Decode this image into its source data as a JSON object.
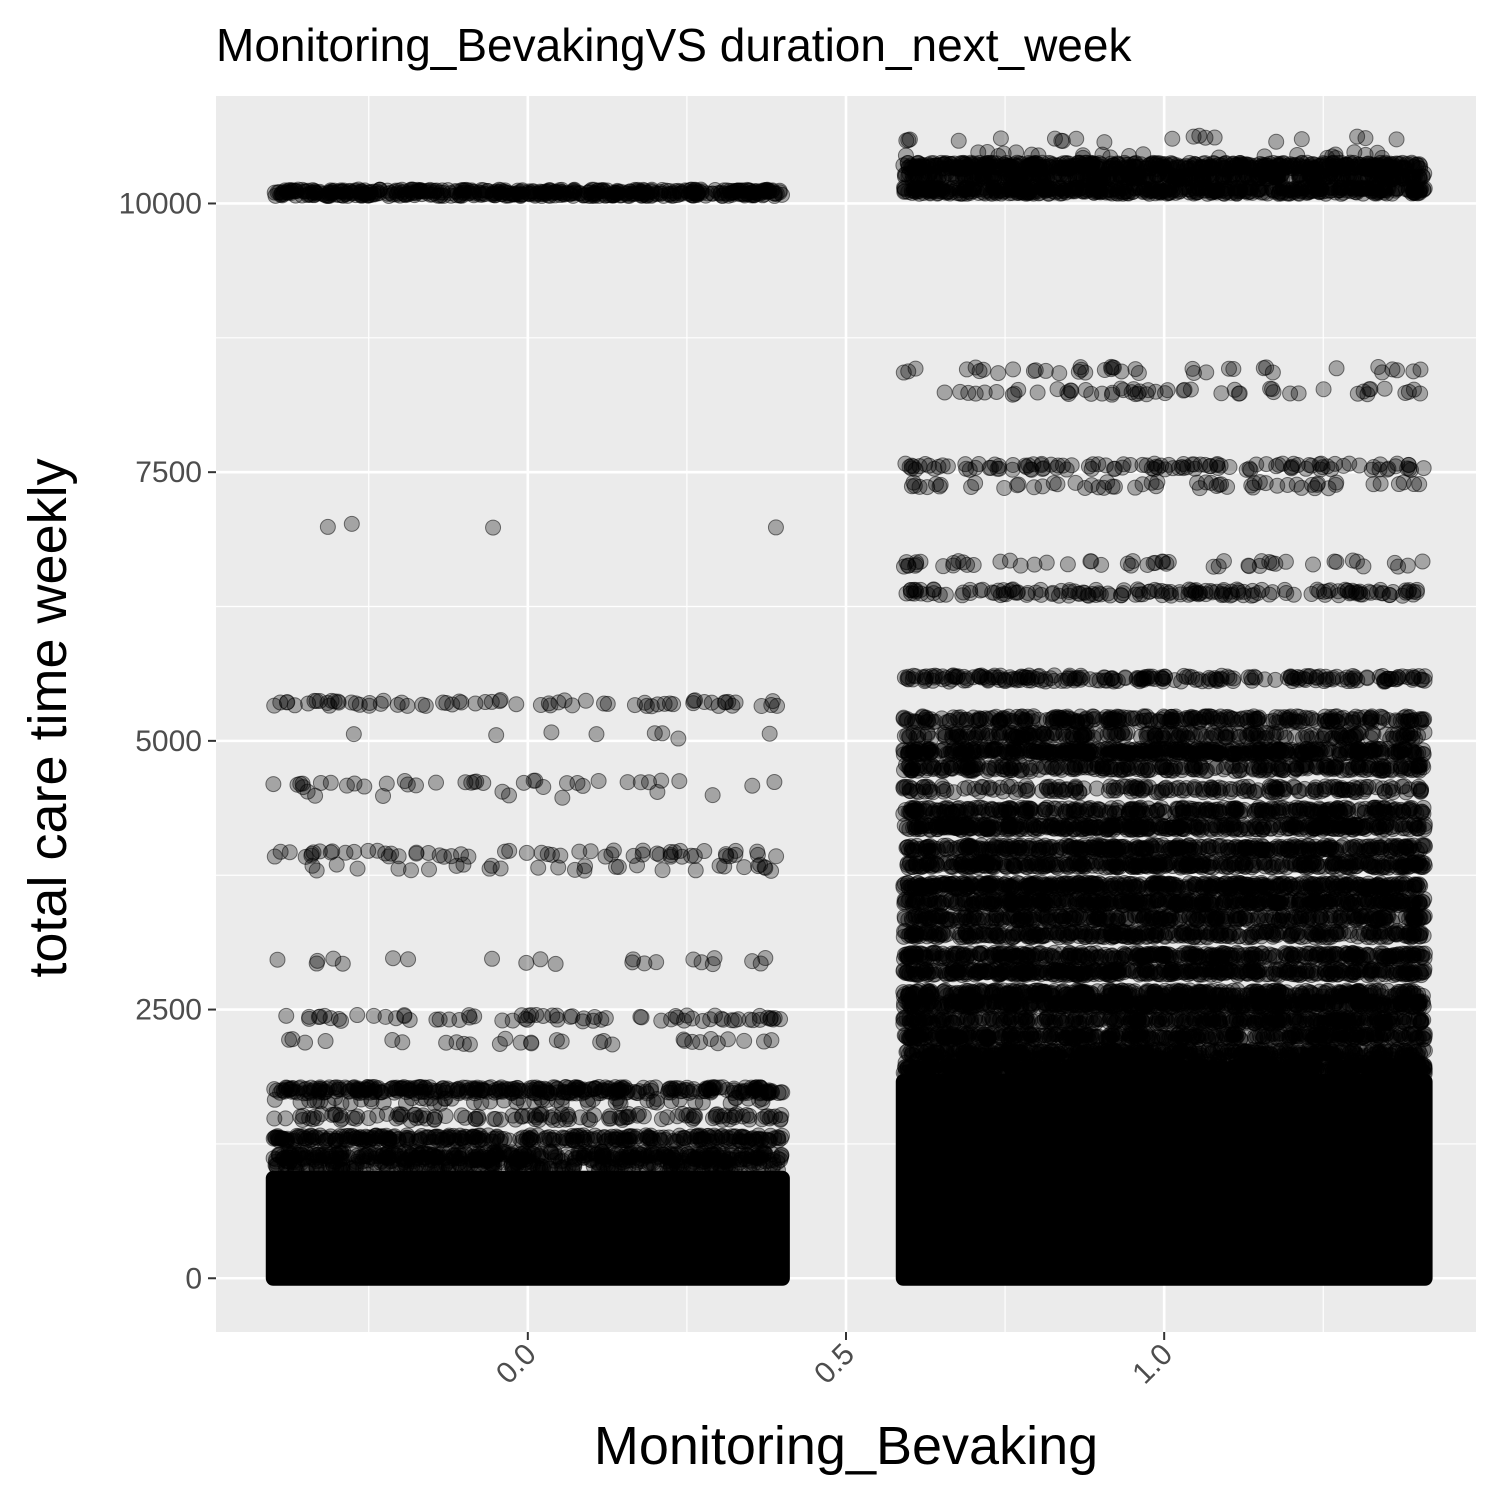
{
  "chart_data": {
    "type": "scatter",
    "title": "Monitoring_BevakingVS duration_next_week",
    "xlabel": "Monitoring_Bevaking",
    "ylabel": "total care time weekly",
    "xlim": [
      -0.49,
      1.49
    ],
    "ylim": [
      -500,
      11000
    ],
    "x_ticks": [
      0.0,
      0.5,
      1.0
    ],
    "x_tick_labels": [
      "0.0",
      "0.5",
      "1.0"
    ],
    "y_ticks": [
      0,
      2500,
      5000,
      7500,
      10000
    ],
    "y_tick_labels": [
      "0",
      "2500",
      "5000",
      "7500",
      "10000"
    ],
    "grid": true,
    "point_color": "#000000",
    "point_alpha": 0.3,
    "background": "#ebebeb",
    "groups": [
      {
        "x_center": 0,
        "jitter": 0.4,
        "dense_band": [
          0,
          1000
        ],
        "levels": [
          {
            "y": 10100,
            "count": 500
          },
          {
            "y": 7000,
            "count": 4
          },
          {
            "y": 5350,
            "count": 70
          },
          {
            "y": 5050,
            "count": 8
          },
          {
            "y": 4600,
            "count": 35
          },
          {
            "y": 4500,
            "count": 8
          },
          {
            "y": 3950,
            "count": 60
          },
          {
            "y": 3820,
            "count": 30
          },
          {
            "y": 2950,
            "count": 22
          },
          {
            "y": 2420,
            "count": 70
          },
          {
            "y": 2200,
            "count": 30
          },
          {
            "y": 1750,
            "count": 350
          },
          {
            "y": 1650,
            "count": 60
          },
          {
            "y": 1500,
            "count": 120
          },
          {
            "y": 1300,
            "count": 350
          },
          {
            "y": 1150,
            "count": 200
          }
        ]
      },
      {
        "x_center": 1,
        "jitter": 0.41,
        "dense_band": [
          0,
          1900
        ],
        "levels": [
          {
            "y": 10600,
            "count": 20
          },
          {
            "y": 10450,
            "count": 25
          },
          {
            "y": 10350,
            "count": 500
          },
          {
            "y": 10250,
            "count": 400
          },
          {
            "y": 10120,
            "count": 500
          },
          {
            "y": 8450,
            "count": 40
          },
          {
            "y": 8250,
            "count": 55
          },
          {
            "y": 7550,
            "count": 120
          },
          {
            "y": 7380,
            "count": 60
          },
          {
            "y": 6650,
            "count": 55
          },
          {
            "y": 6380,
            "count": 160
          },
          {
            "y": 5580,
            "count": 220
          },
          {
            "y": 5200,
            "count": 300
          },
          {
            "y": 5050,
            "count": 250
          },
          {
            "y": 4900,
            "count": 500
          },
          {
            "y": 4750,
            "count": 300
          },
          {
            "y": 4550,
            "count": 200
          },
          {
            "y": 4350,
            "count": 350
          },
          {
            "y": 4200,
            "count": 450
          },
          {
            "y": 4000,
            "count": 400
          },
          {
            "y": 3850,
            "count": 400
          },
          {
            "y": 3650,
            "count": 500
          },
          {
            "y": 3500,
            "count": 450
          },
          {
            "y": 3350,
            "count": 350
          },
          {
            "y": 3200,
            "count": 350
          },
          {
            "y": 3000,
            "count": 400
          },
          {
            "y": 2850,
            "count": 450
          },
          {
            "y": 2650,
            "count": 400
          },
          {
            "y": 2550,
            "count": 500
          },
          {
            "y": 2400,
            "count": 400
          },
          {
            "y": 2250,
            "count": 450
          },
          {
            "y": 2100,
            "count": 450
          },
          {
            "y": 1950,
            "count": 500
          }
        ]
      }
    ]
  }
}
